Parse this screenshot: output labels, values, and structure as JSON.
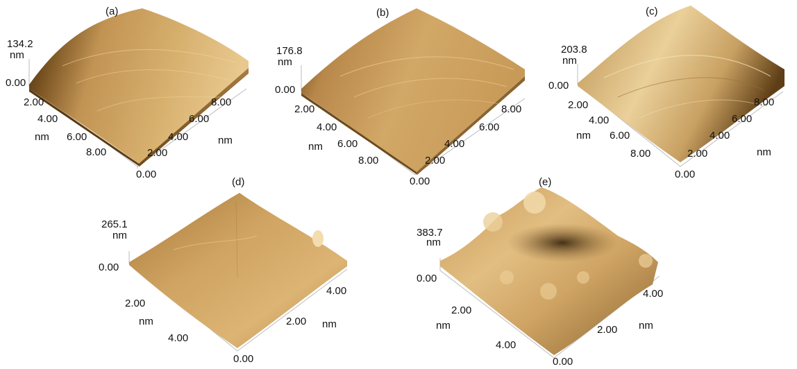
{
  "panels": [
    {
      "label": "(a)",
      "zmax": "134.2",
      "zunit": "nm",
      "zmin": "0.00",
      "xticks": [
        "2.00",
        "4.00",
        "6.00",
        "8.00"
      ],
      "xunit": "nm",
      "yticks": [
        "2.00",
        "4.00",
        "6.00",
        "8.00"
      ],
      "yunit": "nm",
      "origin": "0.00"
    },
    {
      "label": "(b)",
      "zmax": "176.8",
      "zunit": "nm",
      "zmin": "0.00",
      "xticks": [
        "2.00",
        "4.00",
        "6.00",
        "8.00"
      ],
      "xunit": "nm",
      "yticks": [
        "2.00",
        "4.00",
        "6.00",
        "8.00"
      ],
      "yunit": "nm",
      "origin": "0.00"
    },
    {
      "label": "(c)",
      "zmax": "203.8",
      "zunit": "nm",
      "zmin": "0.00",
      "xticks": [
        "2.00",
        "4.00",
        "6.00",
        "8.00"
      ],
      "xunit": "nm",
      "yticks": [
        "2.00",
        "4.00",
        "6.00",
        "8.00"
      ],
      "yunit": "nm",
      "origin": "0.00"
    },
    {
      "label": "(d)",
      "zmax": "265.1",
      "zunit": "nm",
      "zmin": "0.00",
      "xticks": [
        "2.00",
        "4.00"
      ],
      "xunit": "nm",
      "yticks": [
        "2.00",
        "4.00"
      ],
      "yunit": "nm",
      "origin": "0.00"
    },
    {
      "label": "(e)",
      "zmax": "383.7",
      "zunit": "nm",
      "zmin": "0.00",
      "xticks": [
        "2.00",
        "4.00"
      ],
      "xunit": "nm",
      "yticks": [
        "2.00",
        "4.00"
      ],
      "yunit": "nm",
      "origin": "0.00"
    }
  ],
  "colors": {
    "surface_dark": "#5a3a12",
    "surface_mid": "#b8884a",
    "surface_light": "#e8c88e",
    "surface_highlight": "#f3dcae"
  }
}
